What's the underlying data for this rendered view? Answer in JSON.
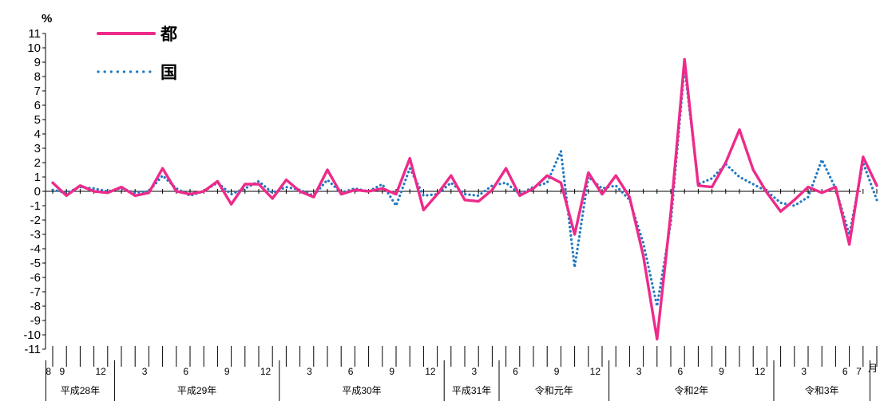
{
  "chart_data": {
    "type": "line",
    "ylabel": "%",
    "xlabel": "月",
    "ylim": [
      -11,
      11
    ],
    "yticks": [
      11,
      10,
      9,
      8,
      7,
      6,
      5,
      4,
      3,
      2,
      1,
      0,
      -1,
      -2,
      -3,
      -4,
      -5,
      -6,
      -7,
      -8,
      -9,
      -10,
      -11
    ],
    "legend": "top-left",
    "grid": false,
    "month_tick_labels": [
      {
        "index": 0,
        "label": "8"
      },
      {
        "index": 1,
        "label": "9"
      },
      {
        "index": 4,
        "label": "12"
      },
      {
        "index": 7,
        "label": "3"
      },
      {
        "index": 10,
        "label": "6"
      },
      {
        "index": 13,
        "label": "9"
      },
      {
        "index": 16,
        "label": "12"
      },
      {
        "index": 19,
        "label": "3"
      },
      {
        "index": 22,
        "label": "6"
      },
      {
        "index": 25,
        "label": "9"
      },
      {
        "index": 28,
        "label": "12"
      },
      {
        "index": 31,
        "label": "3"
      },
      {
        "index": 34,
        "label": "6"
      },
      {
        "index": 37,
        "label": "9"
      },
      {
        "index": 40,
        "label": "12"
      },
      {
        "index": 43,
        "label": "3"
      },
      {
        "index": 46,
        "label": "6"
      },
      {
        "index": 49,
        "label": "9"
      },
      {
        "index": 52,
        "label": "12"
      },
      {
        "index": 55,
        "label": "3"
      },
      {
        "index": 58,
        "label": "6"
      },
      {
        "index": 59,
        "label": "7"
      }
    ],
    "year_groups": [
      {
        "label": "平成28年",
        "start": 0,
        "end": 4
      },
      {
        "label": "平成29年",
        "start": 5,
        "end": 16
      },
      {
        "label": "平成30年",
        "start": 17,
        "end": 28
      },
      {
        "label": "平成31年",
        "start": 29,
        "end": 32
      },
      {
        "label": "令和元年",
        "start": 33,
        "end": 40
      },
      {
        "label": "令和2年",
        "start": 41,
        "end": 52
      },
      {
        "label": "令和3年",
        "start": 53,
        "end": 59
      }
    ],
    "series": [
      {
        "name": "都",
        "color": "#ee2a8a",
        "style": "solid",
        "values": [
          0.6,
          -0.3,
          0.4,
          0.0,
          -0.1,
          0.3,
          -0.3,
          -0.1,
          1.6,
          0.0,
          -0.2,
          0.0,
          0.7,
          -0.9,
          0.5,
          0.5,
          -0.5,
          0.8,
          0.0,
          -0.4,
          1.5,
          -0.2,
          0.1,
          0.0,
          0.2,
          -0.2,
          2.3,
          -1.3,
          -0.2,
          1.1,
          -0.6,
          -0.7,
          0.1,
          1.6,
          -0.3,
          0.2,
          1.1,
          0.6,
          -3.0,
          1.3,
          -0.2,
          1.1,
          -0.4,
          -4.5,
          -10.3,
          -1.5,
          9.2,
          0.4,
          0.3,
          2.0,
          4.3,
          1.5,
          -0.1,
          -1.4,
          -0.6,
          0.3,
          -0.1,
          0.3,
          -3.7,
          2.4,
          0.4
        ]
      },
      {
        "name": "国",
        "color": "#1f78c1",
        "style": "dotted",
        "values": [
          0.1,
          -0.1,
          0.3,
          0.2,
          0.0,
          0.2,
          -0.1,
          0.0,
          1.1,
          0.2,
          -0.3,
          0.0,
          0.6,
          -0.2,
          0.2,
          0.7,
          -0.1,
          0.3,
          0.1,
          -0.3,
          0.8,
          -0.1,
          0.2,
          0.0,
          0.5,
          -1.0,
          1.6,
          -0.3,
          -0.2,
          0.6,
          -0.2,
          -0.3,
          0.4,
          0.6,
          -0.2,
          0.3,
          0.6,
          2.8,
          -5.3,
          1.0,
          0.2,
          0.4,
          -0.6,
          -3.6,
          -8.0,
          -2.2,
          8.7,
          0.5,
          0.9,
          1.9,
          1.0,
          0.5,
          0.0,
          -0.8,
          -1.0,
          -0.4,
          2.2,
          0.2,
          -3.0,
          2.0,
          -0.6
        ]
      }
    ]
  }
}
